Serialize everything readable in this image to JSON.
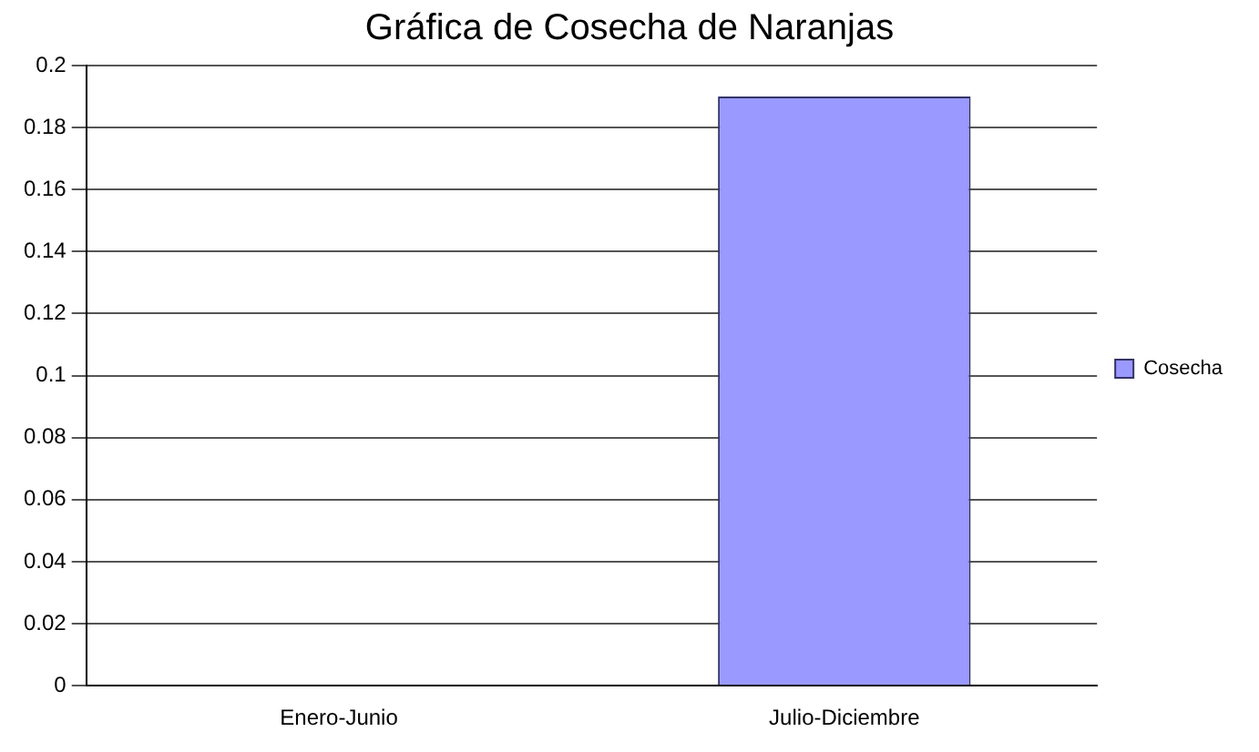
{
  "chart_data": {
    "type": "bar",
    "title": "Gráfica de Cosecha de Naranjas",
    "categories": [
      "Enero-Junio",
      "Julio-Diciembre"
    ],
    "series": [
      {
        "name": "Cosecha",
        "color": "#9999ff",
        "values": [
          0,
          0.19
        ]
      }
    ],
    "ylim": [
      0,
      0.2
    ],
    "yticks": [
      0,
      0.02,
      0.04,
      0.06,
      0.08,
      0.1,
      0.12,
      0.14,
      0.16,
      0.18,
      0.2
    ],
    "grid": "y",
    "legend": "right"
  }
}
